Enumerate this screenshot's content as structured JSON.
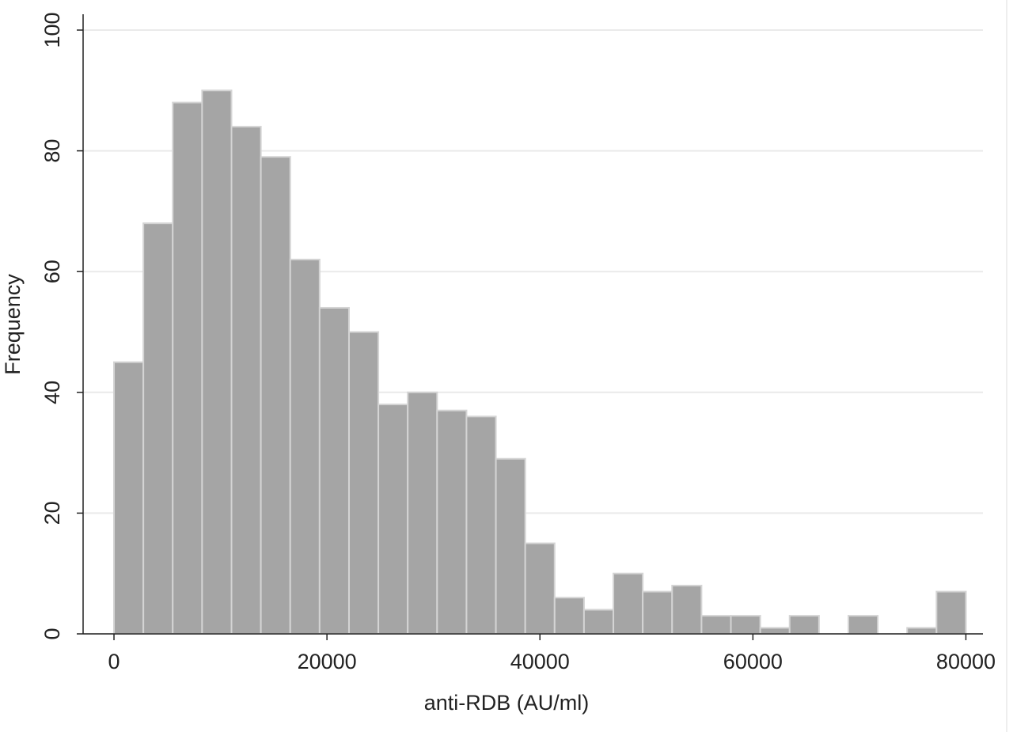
{
  "chart_data": {
    "type": "histogram",
    "x_label": "anti-RDB (AU/ml)",
    "y_label": "Frequency",
    "bins": [
      0,
      2758.6,
      5517.2,
      8275.9,
      11034.5,
      13793.1,
      16551.7,
      19310.3,
      22069.0,
      24827.6,
      27586.2,
      30344.8,
      33103.4,
      35862.1,
      38620.7,
      41379.3,
      44137.9,
      46896.6,
      49655.2,
      52413.8,
      55172.4,
      57931.0,
      60689.7,
      63448.3,
      66206.9,
      68965.5,
      71724.1,
      74482.8,
      77241.4,
      80000
    ],
    "values": [
      45,
      68,
      88,
      90,
      84,
      79,
      62,
      54,
      50,
      38,
      40,
      37,
      36,
      29,
      15,
      6,
      4,
      10,
      7,
      8,
      3,
      3,
      1,
      3,
      0,
      3,
      0,
      1,
      7
    ],
    "color": "#a5a5a5",
    "xlim": [
      -2900,
      81600
    ],
    "xticks": [
      0,
      20000,
      40000,
      60000,
      80000
    ],
    "ylim": [
      0,
      100
    ],
    "yticks": [
      0,
      20,
      40,
      60,
      80,
      100
    ],
    "grid": true
  }
}
